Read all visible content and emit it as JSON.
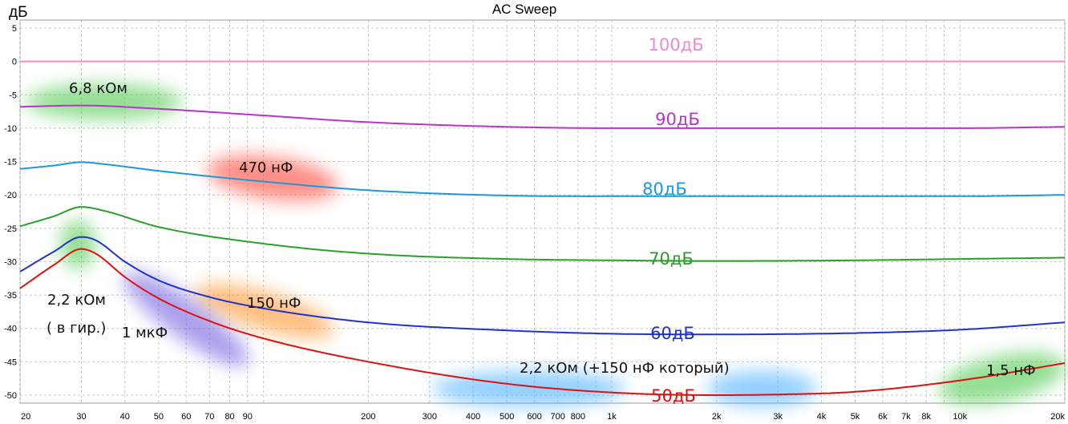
{
  "chart_data": {
    "type": "line",
    "title": "AC Sweep",
    "ylabel": "дБ",
    "xlabel": "",
    "xscale": "log",
    "xlim": [
      20,
      20000
    ],
    "ylim": [
      -51,
      5
    ],
    "grid": true,
    "y_ticks": [
      5,
      0,
      -5,
      -10,
      -15,
      -20,
      -25,
      -30,
      -35,
      -40,
      -45,
      -50
    ],
    "y_tick_labels": [
      "5",
      "0",
      "-5",
      "-10",
      "-15",
      "-20",
      "-25",
      "-30",
      "-35",
      "-40",
      "-45",
      "-50"
    ],
    "x_ticks": [
      20,
      30,
      40,
      50,
      60,
      70,
      80,
      90,
      200,
      300,
      400,
      500,
      600,
      700,
      800,
      1000,
      2000,
      3000,
      4000,
      5000,
      6000,
      7000,
      8000,
      10000,
      20000
    ],
    "x_tick_labels": [
      "20",
      "30",
      "40",
      "50",
      "60",
      "70",
      "80",
      "90",
      "200",
      "300",
      "400",
      "500",
      "600",
      "700",
      "800",
      "1k",
      "2k",
      "3k",
      "4k",
      "5k",
      "6k",
      "7k",
      "8k",
      "10k",
      "20k"
    ],
    "series": [
      {
        "name": "100дБ",
        "color": "#f08cc8",
        "x": [
          20,
          20000
        ],
        "y": [
          0,
          0
        ]
      },
      {
        "name": "90дБ",
        "color": "#bb33cc",
        "x": [
          20,
          30,
          50,
          100,
          200,
          500,
          1000,
          2000,
          5000,
          10000,
          20000
        ],
        "y": [
          -6.8,
          -6.6,
          -7.1,
          -8.1,
          -9.1,
          -9.8,
          -10.0,
          -10.0,
          -10.0,
          -10.0,
          -9.8
        ]
      },
      {
        "name": "80дБ",
        "color": "#1a9ad9",
        "x": [
          20,
          25,
          30,
          35,
          50,
          100,
          200,
          500,
          1000,
          2000,
          5000,
          10000,
          20000
        ],
        "y": [
          -16.1,
          -15.6,
          -15.1,
          -15.4,
          -16.4,
          -18.0,
          -19.3,
          -20.1,
          -20.2,
          -20.2,
          -20.2,
          -20.2,
          -20.0
        ]
      },
      {
        "name": "70дБ",
        "color": "#2aa02a",
        "x": [
          20,
          25,
          30,
          35,
          50,
          100,
          200,
          500,
          1000,
          2000,
          5000,
          10000,
          20000
        ],
        "y": [
          -24.7,
          -23.2,
          -21.8,
          -22.4,
          -24.8,
          -27.3,
          -28.8,
          -29.6,
          -29.8,
          -29.9,
          -29.8,
          -29.6,
          -29.4
        ]
      },
      {
        "name": "60дБ",
        "color": "#2233cc",
        "x": [
          20,
          25,
          30,
          33,
          40,
          50,
          70,
          100,
          200,
          500,
          1000,
          2000,
          5000,
          10000,
          20000
        ],
        "y": [
          -31.5,
          -28.5,
          -26.3,
          -26.8,
          -30.0,
          -32.8,
          -35.3,
          -37.0,
          -39.1,
          -40.3,
          -40.8,
          -40.9,
          -40.7,
          -40.2,
          -39.1
        ]
      },
      {
        "name": "50дБ",
        "color": "#dd1111",
        "x": [
          20,
          25,
          30,
          33,
          40,
          50,
          70,
          100,
          200,
          500,
          1000,
          2000,
          3000,
          5000,
          10000,
          20000
        ],
        "y": [
          -34.0,
          -30.5,
          -28.1,
          -28.8,
          -32.3,
          -35.5,
          -38.9,
          -41.5,
          -45.0,
          -48.3,
          -49.6,
          -50.0,
          -49.9,
          -49.5,
          -47.8,
          -45.2
        ]
      }
    ],
    "annotations": [
      "6,8 кОм",
      "470 нФ",
      "2,2 кОм",
      "( в гир.)",
      "1 мкФ",
      "150 нФ",
      "2,2 кОм (+150 нФ который)",
      "1,5 нФ"
    ],
    "highlight_colors": {
      "green": "#3cc43c",
      "red": "#ff3322",
      "orange": "#ff8c1a",
      "purple": "#6655dd",
      "blue": "#3aaaff"
    }
  }
}
